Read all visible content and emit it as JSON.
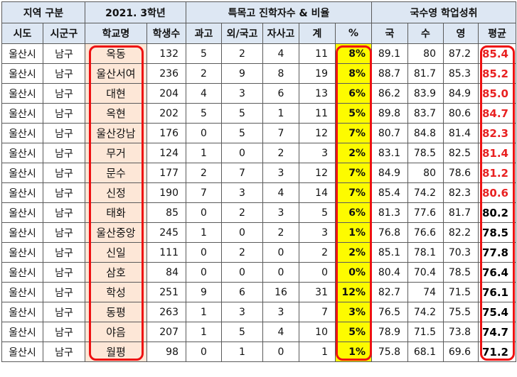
{
  "header": {
    "group_region": "지역 구분",
    "group_year": "2021. 3학년",
    "group_special": "특목고 진학자수 & 비율",
    "group_scores": "국수영 학업성취",
    "col_city": "시도",
    "col_district": "시군구",
    "col_school": "학교명",
    "col_students": "학생수",
    "col_sci": "과고",
    "col_foreign": "외/국고",
    "col_private": "자사고",
    "col_total": "계",
    "col_pct": "%",
    "col_kor": "국",
    "col_math": "수",
    "col_eng": "영",
    "col_avg": "평균"
  },
  "rows": [
    {
      "city": "울산시",
      "district": "남구",
      "school": "옥동",
      "students": "132",
      "sci": "5",
      "foreign": "2",
      "private": "4",
      "total": "11",
      "pct": "8%",
      "kor": "89.1",
      "math": "80",
      "eng": "87.2",
      "avg": "85.4"
    },
    {
      "city": "울산시",
      "district": "남구",
      "school": "울산서여",
      "students": "236",
      "sci": "2",
      "foreign": "9",
      "private": "8",
      "total": "19",
      "pct": "8%",
      "kor": "88.7",
      "math": "81.7",
      "eng": "85.3",
      "avg": "85.2"
    },
    {
      "city": "울산시",
      "district": "남구",
      "school": "대현",
      "students": "204",
      "sci": "4",
      "foreign": "3",
      "private": "6",
      "total": "13",
      "pct": "6%",
      "kor": "86.2",
      "math": "83.9",
      "eng": "84.9",
      "avg": "85.0"
    },
    {
      "city": "울산시",
      "district": "남구",
      "school": "옥현",
      "students": "202",
      "sci": "5",
      "foreign": "5",
      "private": "1",
      "total": "11",
      "pct": "5%",
      "kor": "89.8",
      "math": "83.7",
      "eng": "80.6",
      "avg": "84.7"
    },
    {
      "city": "울산시",
      "district": "남구",
      "school": "울산강남",
      "students": "176",
      "sci": "0",
      "foreign": "5",
      "private": "7",
      "total": "12",
      "pct": "7%",
      "kor": "80.7",
      "math": "84.8",
      "eng": "81.4",
      "avg": "82.3"
    },
    {
      "city": "울산시",
      "district": "남구",
      "school": "무거",
      "students": "124",
      "sci": "1",
      "foreign": "0",
      "private": "2",
      "total": "3",
      "pct": "2%",
      "kor": "83.1",
      "math": "78.5",
      "eng": "82.5",
      "avg": "81.4"
    },
    {
      "city": "울산시",
      "district": "남구",
      "school": "문수",
      "students": "177",
      "sci": "2",
      "foreign": "7",
      "private": "3",
      "total": "12",
      "pct": "7%",
      "kor": "84.9",
      "math": "80",
      "eng": "78.6",
      "avg": "81.2"
    },
    {
      "city": "울산시",
      "district": "남구",
      "school": "신정",
      "students": "190",
      "sci": "7",
      "foreign": "3",
      "private": "4",
      "total": "14",
      "pct": "7%",
      "kor": "85.4",
      "math": "74.2",
      "eng": "82.3",
      "avg": "80.6"
    },
    {
      "city": "울산시",
      "district": "남구",
      "school": "태화",
      "students": "85",
      "sci": "0",
      "foreign": "2",
      "private": "3",
      "total": "5",
      "pct": "6%",
      "kor": "81.3",
      "math": "77.6",
      "eng": "81.7",
      "avg": "80.2"
    },
    {
      "city": "울산시",
      "district": "남구",
      "school": "울산중앙",
      "students": "245",
      "sci": "1",
      "foreign": "0",
      "private": "2",
      "total": "3",
      "pct": "1%",
      "kor": "76.8",
      "math": "76.6",
      "eng": "82.2",
      "avg": "78.5"
    },
    {
      "city": "울산시",
      "district": "남구",
      "school": "신일",
      "students": "111",
      "sci": "0",
      "foreign": "2",
      "private": "0",
      "total": "2",
      "pct": "2%",
      "kor": "85.1",
      "math": "78.1",
      "eng": "70.3",
      "avg": "77.8"
    },
    {
      "city": "울산시",
      "district": "남구",
      "school": "삼호",
      "students": "84",
      "sci": "0",
      "foreign": "0",
      "private": "0",
      "total": "0",
      "pct": "0%",
      "kor": "80.4",
      "math": "70.4",
      "eng": "78.5",
      "avg": "76.4"
    },
    {
      "city": "울산시",
      "district": "남구",
      "school": "학성",
      "students": "251",
      "sci": "9",
      "foreign": "6",
      "private": "16",
      "total": "31",
      "pct": "12%",
      "kor": "82.7",
      "math": "74",
      "eng": "71.5",
      "avg": "76.1"
    },
    {
      "city": "울산시",
      "district": "남구",
      "school": "동평",
      "students": "263",
      "sci": "1",
      "foreign": "3",
      "private": "3",
      "total": "7",
      "pct": "3%",
      "kor": "76.5",
      "math": "74.2",
      "eng": "75.5",
      "avg": "75.4"
    },
    {
      "city": "울산시",
      "district": "남구",
      "school": "야음",
      "students": "207",
      "sci": "1",
      "foreign": "5",
      "private": "4",
      "total": "10",
      "pct": "5%",
      "kor": "78.9",
      "math": "71.5",
      "eng": "73.8",
      "avg": "74.7"
    },
    {
      "city": "울산시",
      "district": "남구",
      "school": "월평",
      "students": "98",
      "sci": "0",
      "foreign": "1",
      "private": "0",
      "total": "1",
      "pct": "1%",
      "kor": "75.8",
      "math": "68.1",
      "eng": "69.6",
      "avg": "71.2"
    }
  ],
  "highlight": {
    "red_avg_rows": 8,
    "avg_red_color": "#e82121",
    "overlay_color": "#ee1111",
    "header_bg": "#dde7f3",
    "school_bg": "#fde7d7",
    "pct_bg": "#fdfb00"
  }
}
